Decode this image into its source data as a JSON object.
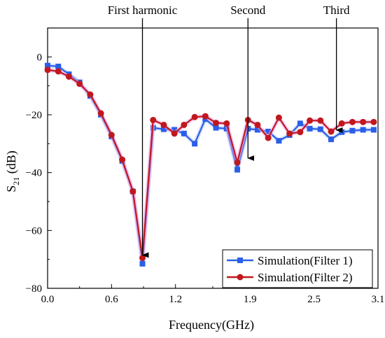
{
  "chart_data": {
    "type": "line",
    "title": "",
    "xlabel": "Frequency(GHz)",
    "ylabel": "S21 (dB)",
    "ylabel_main": "S",
    "ylabel_sub": "21",
    "ylabel_rest": " (dB)",
    "xlim": [
      0.0,
      3.1
    ],
    "ylim": [
      -80,
      10
    ],
    "xticks": [
      0.0,
      0.6,
      1.2,
      1.9,
      2.5,
      3.1
    ],
    "xtick_labels": [
      "0.0",
      "0.6",
      "1.2",
      "1.9",
      "2.5",
      "3.1"
    ],
    "yticks": [
      0,
      -20,
      -40,
      -60,
      -80
    ],
    "ytick_labels": [
      "0",
      "−20",
      "−40",
      "−60",
      "−80"
    ],
    "legend_position": "bottom-right",
    "grid": false,
    "series": [
      {
        "name": "Simulation(Filter 1)",
        "color": "#2a5fe8",
        "marker": "square",
        "x": [
          0.0,
          0.1,
          0.2,
          0.3,
          0.4,
          0.5,
          0.6,
          0.7,
          0.8,
          0.89,
          0.99,
          1.09,
          1.19,
          1.28,
          1.38,
          1.48,
          1.58,
          1.68,
          1.78,
          1.88,
          1.97,
          2.07,
          2.17,
          2.27,
          2.37,
          2.46,
          2.56,
          2.66,
          2.76,
          2.86,
          2.96,
          3.06
        ],
        "y": [
          -3.0,
          -3.3,
          -6.0,
          -8.8,
          -13.5,
          -20.0,
          -27.5,
          -36.0,
          -46.5,
          -71.5,
          -24.5,
          -25.0,
          -25.2,
          -26.5,
          -30.0,
          -21.5,
          -24.5,
          -24.8,
          -39.0,
          -24.8,
          -25.2,
          -25.8,
          -29.0,
          -27.0,
          -23.0,
          -24.8,
          -25.0,
          -28.5,
          -26.0,
          -25.5,
          -25.2,
          -25.2
        ]
      },
      {
        "name": "Simulation(Filter 2)",
        "color": "#c0181d",
        "marker": "circle",
        "x": [
          0.0,
          0.1,
          0.2,
          0.3,
          0.4,
          0.5,
          0.6,
          0.7,
          0.8,
          0.89,
          0.99,
          1.09,
          1.19,
          1.28,
          1.38,
          1.48,
          1.58,
          1.68,
          1.78,
          1.88,
          1.97,
          2.07,
          2.17,
          2.27,
          2.37,
          2.46,
          2.56,
          2.66,
          2.76,
          2.86,
          2.96,
          3.06
        ],
        "y": [
          -4.5,
          -5.0,
          -6.8,
          -9.3,
          -13.0,
          -19.5,
          -27.0,
          -35.5,
          -46.5,
          -69.5,
          -21.8,
          -23.5,
          -26.5,
          -23.5,
          -20.8,
          -20.5,
          -22.8,
          -23.0,
          -36.5,
          -21.8,
          -23.5,
          -28.0,
          -21.0,
          -26.5,
          -26.0,
          -22.0,
          -22.0,
          -25.8,
          -23.0,
          -22.5,
          -22.5,
          -22.5
        ]
      }
    ],
    "annotations": [
      {
        "text": "First harmonic",
        "x": 0.89,
        "y_tip": -68.5
      },
      {
        "text": "Second",
        "x": 1.88,
        "y_tip": -35.0
      },
      {
        "text": "Third",
        "x": 2.71,
        "y_tip": -25.3
      }
    ]
  }
}
